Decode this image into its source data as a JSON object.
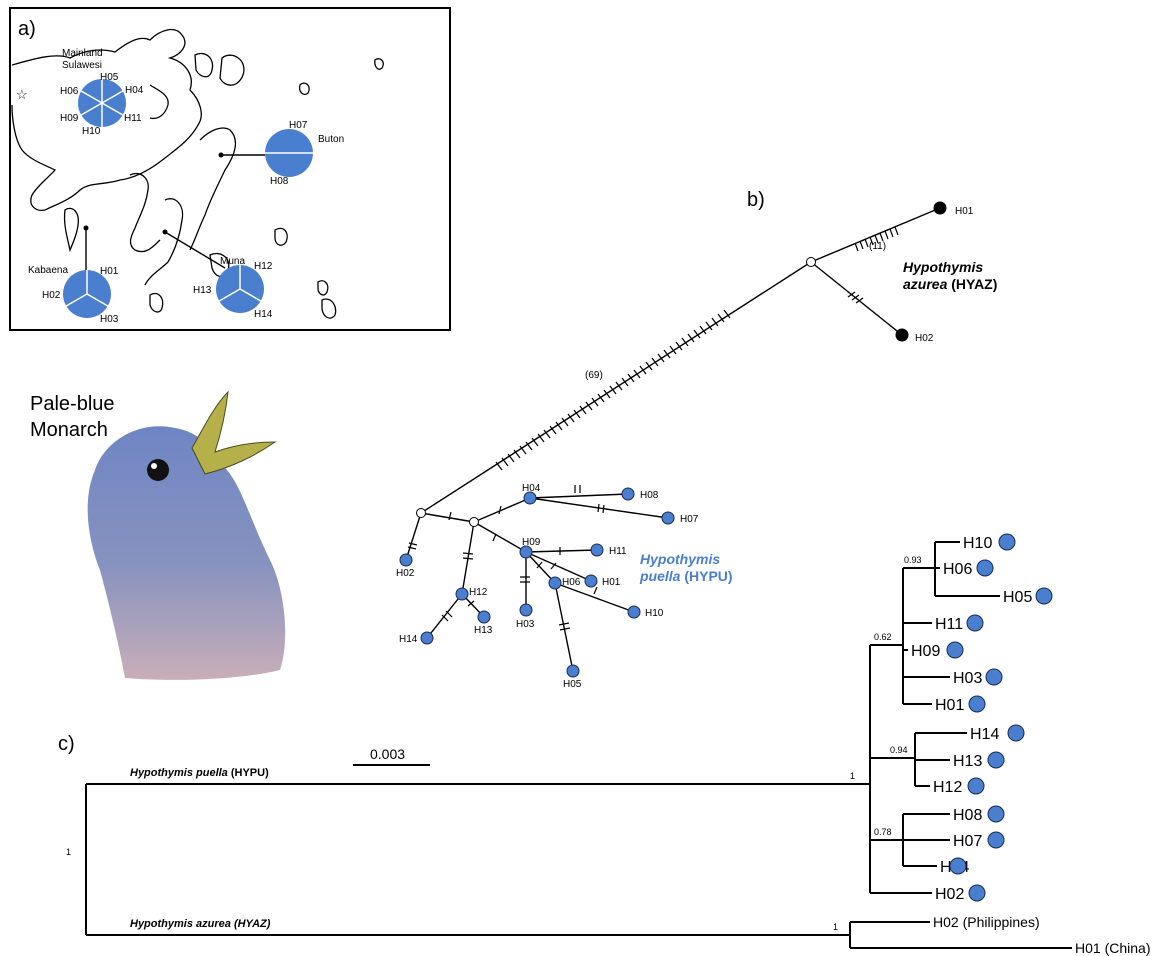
{
  "panels": {
    "a": "a)",
    "b": "b)",
    "c": "c)"
  },
  "map": {
    "regions": [
      "Mainland\nSulawesi",
      "Buton",
      "Kabaena",
      "Muna"
    ],
    "pies": [
      {
        "region": "Mainland Sulawesi",
        "haplotypes": [
          "H05",
          "H04",
          "H11",
          "H10",
          "H09",
          "H06"
        ]
      },
      {
        "region": "Buton",
        "haplotypes": [
          "H07",
          "H08"
        ]
      },
      {
        "region": "Kabaena",
        "haplotypes": [
          "H01",
          "H02",
          "H03"
        ]
      },
      {
        "region": "Muna",
        "haplotypes": [
          "H12",
          "H13",
          "H14"
        ]
      }
    ]
  },
  "bird": {
    "caption_line1": "Pale-blue",
    "caption_line2": "Monarch"
  },
  "network": {
    "hyaz_label_genus": "Hypothymis",
    "hyaz_label_species": "azurea",
    "hyaz_label_code": "(HYAZ)",
    "hypu_label_genus": "Hypothymis",
    "hypu_label_species": "puella",
    "hypu_label_code": "(HYPU)",
    "long_branch_count": "(69)",
    "hyaz_branch_count": "(11)",
    "hyaz_nodes": [
      "H01",
      "H02"
    ],
    "hypu_nodes": [
      "H02",
      "H04",
      "H08",
      "H07",
      "H09",
      "H11",
      "H06",
      "H01",
      "H03",
      "H10",
      "H05",
      "H12",
      "H13",
      "H14"
    ]
  },
  "tree": {
    "scale_label": "0.003",
    "hypu_clade_genus": "Hypothymis puella",
    "hypu_clade_code": "(HYPU)",
    "hyaz_clade_genus": "Hypothymis azurea",
    "hyaz_clade_code": "(HYAZ)",
    "supports": {
      "root": "1",
      "hypu": "1",
      "hyaz": "1",
      "c1": "0.62",
      "c1a": "0.93",
      "c2": "0.94",
      "c3": "0.78"
    },
    "tips": [
      "H10",
      "H06",
      "H05",
      "H11",
      "H09",
      "H03",
      "H01",
      "H14",
      "H13",
      "H12",
      "H08",
      "H07",
      "H04",
      "H02"
    ],
    "hyaz_tips": [
      "H02 (Philippines)",
      "H01 (China)"
    ]
  },
  "colors": {
    "hypu": "#4a7fd0",
    "hyaz": "#000000"
  }
}
